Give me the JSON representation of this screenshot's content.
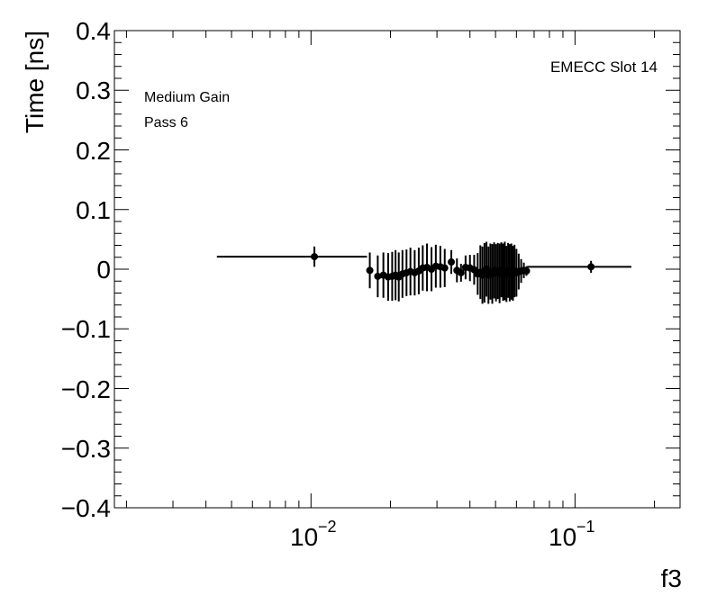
{
  "chart_data": {
    "type": "scatter",
    "title": "",
    "xlabel": "f3",
    "ylabel": "Time [ns]",
    "x_scale": "log",
    "xlim": [
      0.0018,
      0.25
    ],
    "ylim": [
      -0.4,
      0.4
    ],
    "x_ticklabels": [
      "10",
      "−2",
      "10",
      "−1"
    ],
    "y_ticklabels": [
      "0.4",
      "0.3",
      "0.2",
      "0.1",
      "0",
      "−0.1",
      "−0.2",
      "−0.3",
      "−0.4"
    ],
    "annotations": [
      "EMECC Slot 14",
      "Medium Gain",
      "Pass 6"
    ],
    "grid": false,
    "series": [
      {
        "marker": "circle",
        "color": "#000000",
        "points": [
          {
            "x": 0.0103,
            "y": 0.021,
            "xerr_low": 0.0059,
            "xerr_high": 0.006,
            "yerr": 0.017
          },
          {
            "x": 0.0167,
            "y": -0.002,
            "yerr": 0.03
          },
          {
            "x": 0.0179,
            "y": -0.012,
            "yerr": 0.035
          },
          {
            "x": 0.0188,
            "y": -0.01,
            "yerr": 0.038
          },
          {
            "x": 0.0196,
            "y": -0.013,
            "yerr": 0.04
          },
          {
            "x": 0.0203,
            "y": -0.012,
            "yerr": 0.041
          },
          {
            "x": 0.0209,
            "y": -0.01,
            "yerr": 0.042
          },
          {
            "x": 0.0215,
            "y": -0.013,
            "yerr": 0.041
          },
          {
            "x": 0.0222,
            "y": -0.008,
            "yerr": 0.04
          },
          {
            "x": 0.023,
            "y": -0.006,
            "yerr": 0.039
          },
          {
            "x": 0.0238,
            "y": -0.004,
            "yerr": 0.04
          },
          {
            "x": 0.0247,
            "y": -0.006,
            "yerr": 0.038
          },
          {
            "x": 0.0256,
            "y": -0.003,
            "yerr": 0.039
          },
          {
            "x": 0.0265,
            "y": 0.002,
            "yerr": 0.038
          },
          {
            "x": 0.0275,
            "y": 0.003,
            "yerr": 0.04
          },
          {
            "x": 0.0286,
            "y": 0.0,
            "yerr": 0.037
          },
          {
            "x": 0.0297,
            "y": 0.005,
            "yerr": 0.036
          },
          {
            "x": 0.0309,
            "y": 0.004,
            "yerr": 0.035
          },
          {
            "x": 0.0321,
            "y": 0.002,
            "yerr": 0.032
          },
          {
            "x": 0.034,
            "y": 0.012,
            "yerr": 0.02
          },
          {
            "x": 0.0357,
            "y": -0.002,
            "yerr": 0.02
          },
          {
            "x": 0.037,
            "y": -0.006,
            "yerr": 0.015
          },
          {
            "x": 0.0385,
            "y": 0.003,
            "yerr": 0.02
          },
          {
            "x": 0.04,
            "y": 0.002,
            "yerr": 0.022
          },
          {
            "x": 0.0415,
            "y": -0.001,
            "yerr": 0.025
          },
          {
            "x": 0.0428,
            "y": -0.008,
            "yerr": 0.035
          },
          {
            "x": 0.0438,
            "y": -0.005,
            "yerr": 0.045
          },
          {
            "x": 0.0446,
            "y": -0.01,
            "yerr": 0.048
          },
          {
            "x": 0.0454,
            "y": -0.006,
            "yerr": 0.05
          },
          {
            "x": 0.0462,
            "y": 0.0,
            "yerr": 0.046
          },
          {
            "x": 0.047,
            "y": -0.01,
            "yerr": 0.048
          },
          {
            "x": 0.0478,
            "y": -0.004,
            "yerr": 0.047
          },
          {
            "x": 0.0486,
            "y": -0.008,
            "yerr": 0.05
          },
          {
            "x": 0.0494,
            "y": -0.002,
            "yerr": 0.047
          },
          {
            "x": 0.0502,
            "y": -0.006,
            "yerr": 0.048
          },
          {
            "x": 0.051,
            "y": -0.003,
            "yerr": 0.047
          },
          {
            "x": 0.0518,
            "y": -0.007,
            "yerr": 0.05
          },
          {
            "x": 0.0526,
            "y": -0.001,
            "yerr": 0.046
          },
          {
            "x": 0.0534,
            "y": -0.005,
            "yerr": 0.048
          },
          {
            "x": 0.0542,
            "y": -0.003,
            "yerr": 0.049
          },
          {
            "x": 0.055,
            "y": -0.008,
            "yerr": 0.047
          },
          {
            "x": 0.0558,
            "y": -0.002,
            "yerr": 0.046
          },
          {
            "x": 0.0566,
            "y": -0.006,
            "yerr": 0.048
          },
          {
            "x": 0.0574,
            "y": -0.004,
            "yerr": 0.047
          },
          {
            "x": 0.0582,
            "y": -0.007,
            "yerr": 0.046
          },
          {
            "x": 0.059,
            "y": -0.003,
            "yerr": 0.044
          },
          {
            "x": 0.06,
            "y": -0.006,
            "yerr": 0.04
          },
          {
            "x": 0.0612,
            "y": -0.004,
            "yerr": 0.03
          },
          {
            "x": 0.0625,
            "y": -0.003,
            "yerr": 0.02
          },
          {
            "x": 0.064,
            "y": -0.002,
            "yerr": 0.013
          },
          {
            "x": 0.0655,
            "y": -0.003,
            "yerr": 0.008
          },
          {
            "x": 0.115,
            "y": 0.004,
            "xerr_low": 0.049,
            "xerr_high": 0.0485,
            "yerr": 0.01
          }
        ]
      }
    ]
  }
}
